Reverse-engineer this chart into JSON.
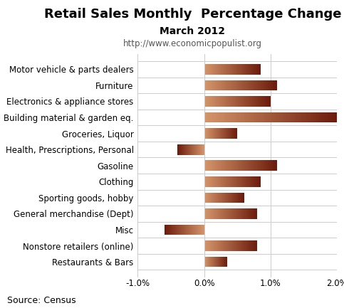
{
  "title": "Retail Sales Monthly  Percentage Change",
  "subtitle": "March 2012",
  "url": "http://www.economicpopulist.org",
  "source": "Source: Census",
  "categories": [
    "Motor vehicle & parts dealers",
    "Furniture",
    "Electronics & appliance stores",
    "Building material & garden eq.",
    "Groceries, Liquor",
    "Health, Prescriptions, Personal",
    "Gasoline",
    "Clothing",
    "Sporting goods, hobby",
    "General merchandise (Dept)",
    "Misc",
    "Nonstore retailers (online)",
    "Restaurants & Bars"
  ],
  "values": [
    0.85,
    1.1,
    1.0,
    2.0,
    0.5,
    -0.4,
    1.1,
    0.85,
    0.6,
    0.8,
    -0.6,
    0.8,
    0.35
  ],
  "xlim": [
    -1.0,
    2.0
  ],
  "xticks": [
    -1.0,
    0.0,
    1.0,
    2.0
  ],
  "background_color": "#ffffff",
  "bar_color_pos_left": "#d4956a",
  "bar_color_pos_right": "#6b1a0a",
  "bar_color_neg_left": "#6b1a0a",
  "bar_color_neg_right": "#d4956a",
  "title_fontsize": 13,
  "subtitle_fontsize": 10,
  "url_fontsize": 8.5,
  "label_fontsize": 8.5,
  "tick_fontsize": 8.5,
  "source_fontsize": 9,
  "figsize": [
    4.83,
    4.33
  ],
  "dpi": 100
}
